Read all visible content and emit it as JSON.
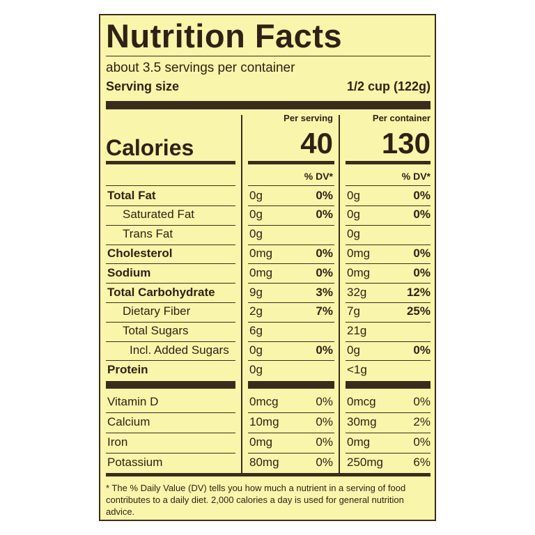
{
  "title": "Nutrition Facts",
  "servings": "about 3.5 servings per container",
  "serving_size": {
    "label": "Serving size",
    "value": "1/2 cup (122g)"
  },
  "calories": {
    "label": "Calories",
    "per_serving_header": "Per serving",
    "per_container_header": "Per container",
    "per_serving": "40",
    "per_container": "130"
  },
  "dv_header": {
    "per_serving": "% DV*",
    "per_container": "% DV*"
  },
  "nutrients": [
    {
      "name": "Total Fat",
      "serving_amount": "0g",
      "serving_dv": "0%",
      "container_amount": "0g",
      "container_dv": "0%"
    },
    {
      "name": "Saturated Fat",
      "serving_amount": "0g",
      "serving_dv": "0%",
      "container_amount": "0g",
      "container_dv": "0%"
    },
    {
      "name": "Trans Fat",
      "serving_amount": "0g",
      "container_amount": "0g"
    },
    {
      "name": "Cholesterol",
      "serving_amount": "0mg",
      "serving_dv": "0%",
      "container_amount": "0mg",
      "container_dv": "0%"
    },
    {
      "name": "Sodium",
      "serving_amount": "0mg",
      "serving_dv": "0%",
      "container_amount": "0mg",
      "container_dv": "0%"
    },
    {
      "name": "Total Carbohydrate",
      "serving_amount": "9g",
      "serving_dv": "3%",
      "container_amount": "32g",
      "container_dv": "12%"
    },
    {
      "name": "Dietary Fiber",
      "serving_amount": "2g",
      "serving_dv": "7%",
      "container_amount": "7g",
      "container_dv": "25%"
    },
    {
      "name": "Total Sugars",
      "serving_amount": "6g",
      "container_amount": "21g"
    },
    {
      "name": "Incl. Added Sugars",
      "serving_amount": "0g",
      "serving_dv": "0%",
      "container_amount": "0g",
      "container_dv": "0%"
    },
    {
      "name": "Protein",
      "serving_amount": "0g",
      "container_amount": "<1g"
    }
  ],
  "vitamins": [
    {
      "name": "Vitamin D",
      "serving_amount": "0mcg",
      "serving_dv": "0%",
      "container_amount": "0mcg",
      "container_dv": "0%"
    },
    {
      "name": "Calcium",
      "serving_amount": "10mg",
      "serving_dv": "0%",
      "container_amount": "30mg",
      "container_dv": "2%"
    },
    {
      "name": "Iron",
      "serving_amount": "0mg",
      "serving_dv": "0%",
      "container_amount": "0mg",
      "container_dv": "0%"
    },
    {
      "name": "Potassium",
      "serving_amount": "80mg",
      "serving_dv": "0%",
      "container_amount": "250mg",
      "container_dv": "6%"
    }
  ],
  "footnote": "* The % Daily Value (DV) tells you how much a nutrient in a serving of food contributes to a daily diet. 2,000 calories a day is used for general nutrition advice."
}
